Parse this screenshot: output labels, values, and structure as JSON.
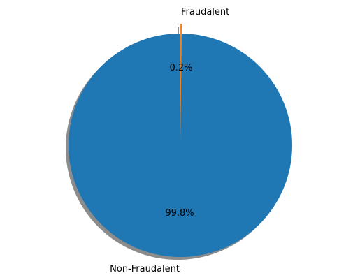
{
  "chart_data": {
    "type": "pie",
    "title": "",
    "start_angle_deg": 90,
    "shadow": true,
    "slices": [
      {
        "label": "Non-Fraudalent",
        "value": 99.8,
        "pct_label": "99.8%",
        "color": "#1f77b4"
      },
      {
        "label": "Fraudalent",
        "value": 0.2,
        "pct_label": "0.2%",
        "color": "#ff7f0e",
        "explode": true
      }
    ]
  }
}
